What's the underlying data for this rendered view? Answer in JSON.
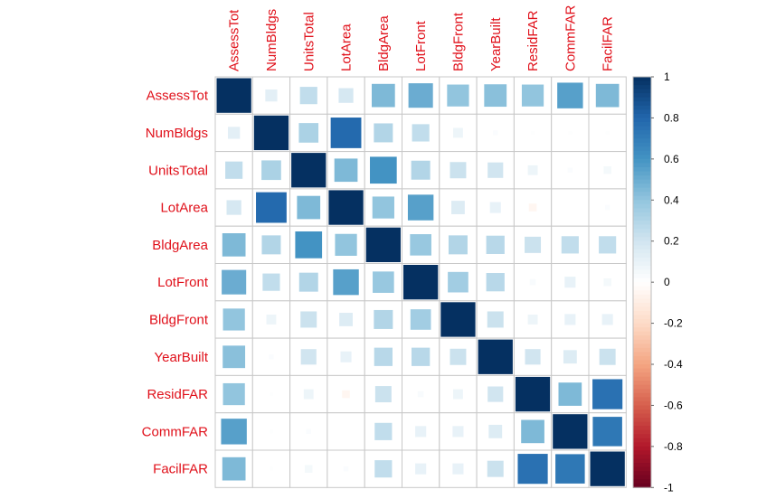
{
  "chart_data": {
    "type": "heatmap",
    "title": "",
    "method": "square",
    "variables": [
      "AssessTot",
      "NumBldgs",
      "UnitsTotal",
      "LotArea",
      "BldgArea",
      "LotFront",
      "BldgFront",
      "YearBuilt",
      "ResidFAR",
      "CommFAR",
      "FacilFAR"
    ],
    "label_color": "#e0101a",
    "matrix": [
      [
        1.0,
        0.12,
        0.25,
        0.18,
        0.45,
        0.5,
        0.4,
        0.42,
        0.4,
        0.55,
        0.45
      ],
      [
        0.12,
        1.0,
        0.32,
        0.78,
        0.3,
        0.25,
        0.08,
        0.02,
        0.01,
        0.01,
        0.01
      ],
      [
        0.25,
        0.32,
        1.0,
        0.45,
        0.6,
        0.3,
        0.22,
        0.2,
        0.08,
        0.02,
        0.05
      ],
      [
        0.18,
        0.78,
        0.45,
        1.0,
        0.4,
        0.55,
        0.15,
        0.1,
        -0.05,
        0.0,
        0.02
      ],
      [
        0.45,
        0.3,
        0.6,
        0.4,
        1.0,
        0.38,
        0.3,
        0.28,
        0.22,
        0.25,
        0.25
      ],
      [
        0.5,
        0.25,
        0.3,
        0.55,
        0.38,
        1.0,
        0.35,
        0.28,
        0.03,
        0.1,
        0.05
      ],
      [
        0.4,
        0.08,
        0.22,
        0.15,
        0.3,
        0.35,
        1.0,
        0.22,
        0.08,
        0.1,
        0.1
      ],
      [
        0.42,
        0.02,
        0.2,
        0.1,
        0.28,
        0.28,
        0.22,
        1.0,
        0.2,
        0.15,
        0.22
      ],
      [
        0.4,
        0.01,
        0.08,
        -0.05,
        0.22,
        0.03,
        0.08,
        0.2,
        1.0,
        0.45,
        0.75
      ],
      [
        0.55,
        0.01,
        0.02,
        0.0,
        0.25,
        0.1,
        0.1,
        0.15,
        0.45,
        1.0,
        0.72
      ],
      [
        0.45,
        0.01,
        0.05,
        0.02,
        0.25,
        0.1,
        0.1,
        0.22,
        0.75,
        0.72,
        1.0
      ]
    ],
    "colorbar": {
      "range": [
        -1,
        1
      ],
      "ticks": [
        "1",
        "0.8",
        "0.6",
        "0.4",
        "0.2",
        "0",
        "-0.2",
        "-0.4",
        "-0.6",
        "-0.8",
        "-1"
      ],
      "palette": [
        "#67001F",
        "#B2182B",
        "#D6604D",
        "#F4A582",
        "#FDDBC7",
        "#FFFFFF",
        "#D1E5F0",
        "#92C5DE",
        "#4393C3",
        "#2166AC",
        "#053061"
      ]
    },
    "grid": true
  }
}
